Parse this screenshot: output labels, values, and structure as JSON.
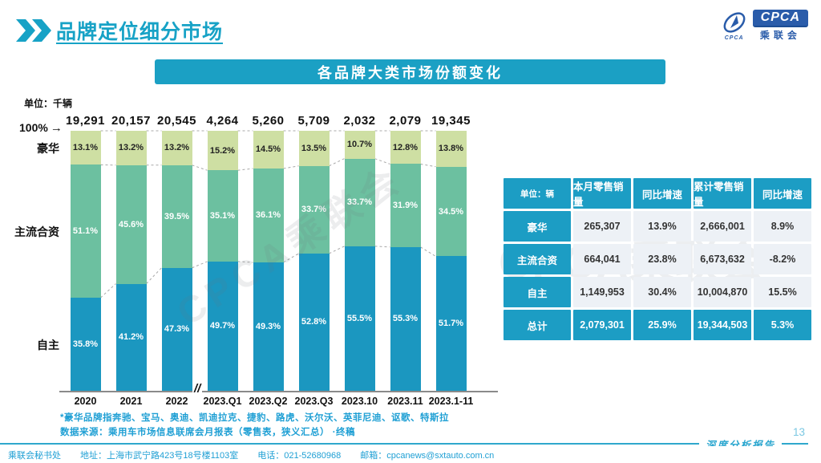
{
  "page": {
    "number": "13",
    "report_type": "深度分析报告"
  },
  "header": {
    "title": "品牌定位细分市场",
    "logo": {
      "text": "CPCA",
      "subtext": "乘联会",
      "mark_text": "CPCA"
    }
  },
  "banner": {
    "title": "各品牌大类市场份额变化"
  },
  "watermark": "CPCA乘联会",
  "chart_data": {
    "type": "bar",
    "variant": "stacked-100-percent",
    "title": "各品牌大类市场份额变化",
    "unit_label": "单位：千辆",
    "top_axis_label": "100%",
    "top_axis_arrow": "→",
    "axis_break_symbol": "//",
    "axis_break_after": "2022",
    "ylim": [
      0,
      100
    ],
    "legend_position": "left",
    "categories": [
      "2020",
      "2021",
      "2022",
      "2023.Q1",
      "2023.Q2",
      "2023.Q3",
      "2023.10",
      "2023.11",
      "2023.1-11"
    ],
    "bar_totals": [
      "19,291",
      "20,157",
      "20,545",
      "4,264",
      "5,260",
      "5,709",
      "2,032",
      "2,079",
      "19,345"
    ],
    "series": [
      {
        "name": "豪华",
        "color": "#cedfa3",
        "label_color": "#222222",
        "values": [
          13.1,
          13.2,
          13.2,
          15.2,
          14.5,
          13.5,
          10.7,
          12.8,
          13.8
        ]
      },
      {
        "name": "主流合资",
        "color": "#6cc0a0",
        "label_color": "#ffffff",
        "values": [
          51.1,
          45.6,
          39.5,
          35.1,
          36.1,
          33.7,
          33.7,
          31.9,
          34.5
        ]
      },
      {
        "name": "自主",
        "color": "#1b97c0",
        "label_color": "#ffffff",
        "values": [
          35.8,
          41.2,
          47.3,
          49.7,
          49.3,
          52.8,
          55.5,
          55.3,
          51.7
        ]
      }
    ]
  },
  "table": {
    "unit_header": "单位：辆",
    "columns": [
      "本月零售销量",
      "同比增速",
      "累计零售销量",
      "同比增速"
    ],
    "rows": [
      {
        "label": "豪华",
        "values": [
          "265,307",
          "13.9%",
          "2,666,001",
          "8.9%"
        ],
        "is_total": false
      },
      {
        "label": "主流合资",
        "values": [
          "664,041",
          "23.8%",
          "6,673,632",
          "-8.2%"
        ],
        "is_total": false
      },
      {
        "label": "自主",
        "values": [
          "1,149,953",
          "30.4%",
          "10,004,870",
          "15.5%"
        ],
        "is_total": false
      },
      {
        "label": "总计",
        "values": [
          "2,079,301",
          "25.9%",
          "19,344,503",
          "5.3%"
        ],
        "is_total": true
      }
    ]
  },
  "footnotes": {
    "note1": "*豪华品牌指奔驰、宝马、奥迪、凯迪拉克、捷豹、路虎、沃尔沃、英菲尼迪、讴歌、特斯拉",
    "note2": "数据来源：乘用车市场信息联席会月报表（零售表，狭义汇总） ·终稿"
  },
  "footer": {
    "org": "乘联会秘书处",
    "address": "地址：上海市武宁路423号18号楼1103室",
    "phone": "电话：021-52680968",
    "email": "邮箱：cpcanews@sxtauto.com.cn"
  }
}
